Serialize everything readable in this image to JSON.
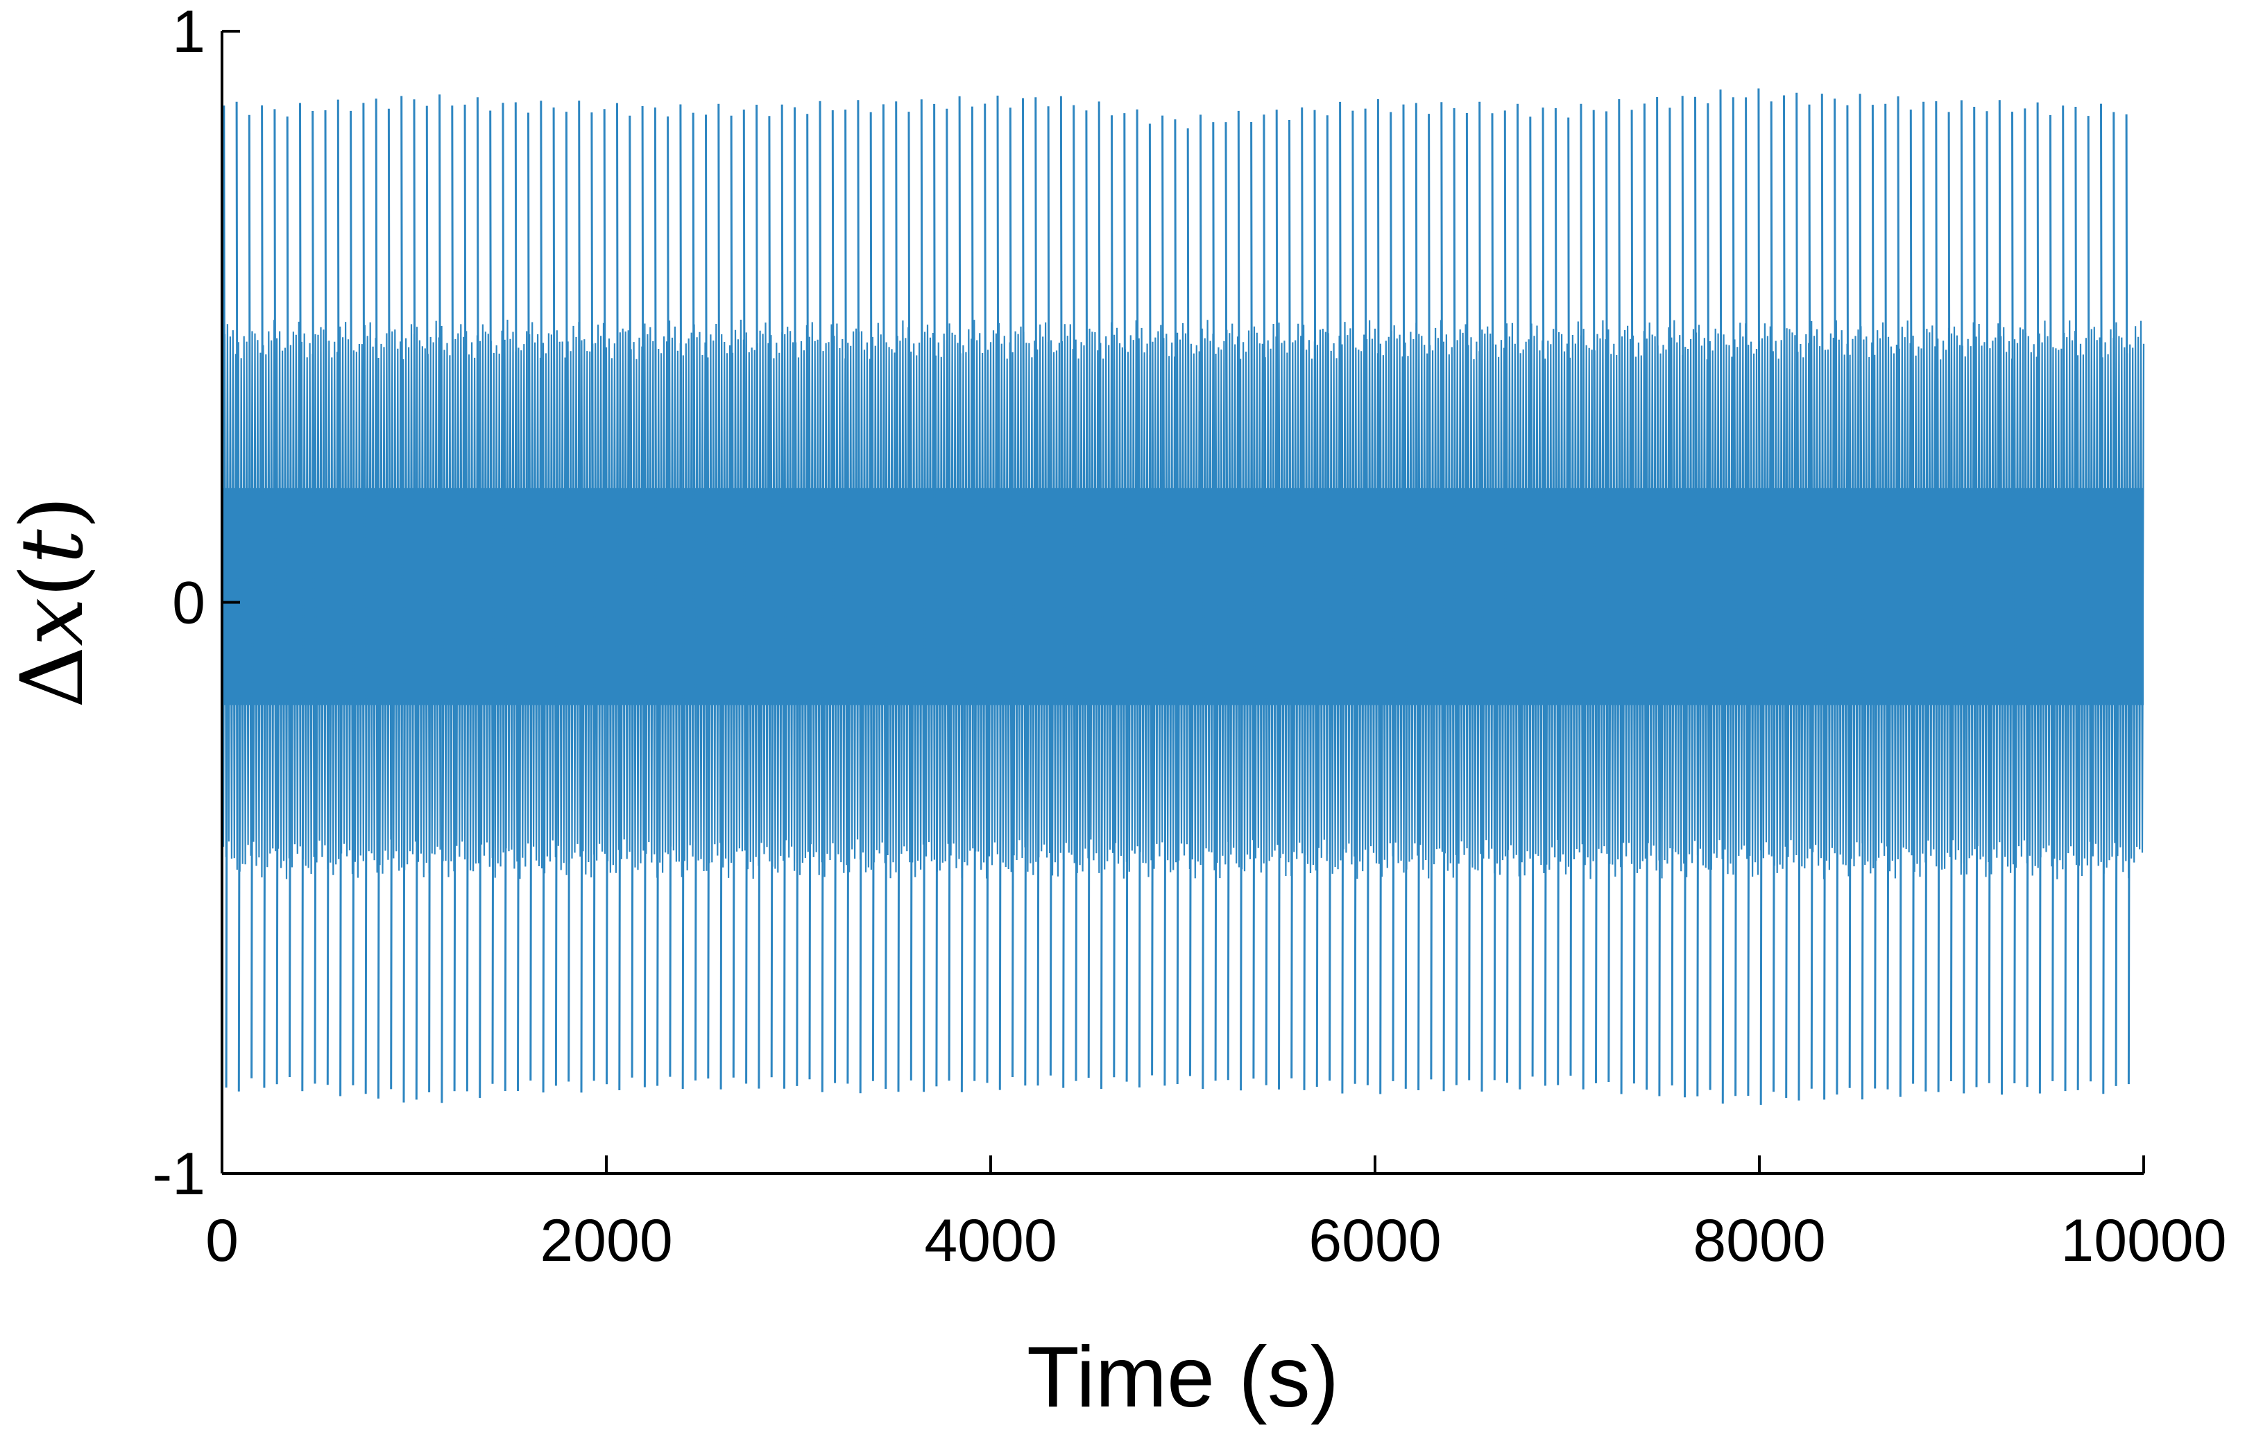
{
  "chart_data": {
    "type": "line",
    "title": "",
    "xlabel": "Time (s)",
    "ylabel_parts": [
      "Δ",
      "x",
      "(",
      "t",
      ")"
    ],
    "xlim": [
      0,
      10000
    ],
    "ylim": [
      -1,
      1
    ],
    "x_ticks": [
      0,
      2000,
      4000,
      6000,
      8000,
      10000
    ],
    "x_tick_labels": [
      "0",
      "2000",
      "4000",
      "6000",
      "8000",
      "10000"
    ],
    "y_ticks": [
      -1,
      0,
      1
    ],
    "y_tick_labels": [
      "-1",
      "0",
      "1"
    ],
    "grid": false,
    "line_color": "#2e86c1",
    "series": [
      {
        "description_note": "",
        "dense_band": [
          -0.18,
          0.2
        ],
        "medium_band": [
          -0.45,
          0.46
        ],
        "spike_period": 66,
        "spike_count": 151,
        "spike_peaks": {
          "x": [
            0,
            300,
            1000,
            1500,
            2500,
            3500,
            4300,
            5000,
            6000,
            7000,
            7900,
            9000,
            10000
          ],
          "max": [
            0.87,
            0.86,
            0.88,
            0.87,
            0.86,
            0.87,
            0.88,
            0.84,
            0.87,
            0.86,
            0.89,
            0.87,
            0.86
          ],
          "min": [
            -0.85,
            -0.84,
            -0.87,
            -0.85,
            -0.84,
            -0.85,
            -0.84,
            -0.84,
            -0.85,
            -0.84,
            -0.87,
            -0.85,
            -0.85
          ]
        }
      }
    ]
  }
}
